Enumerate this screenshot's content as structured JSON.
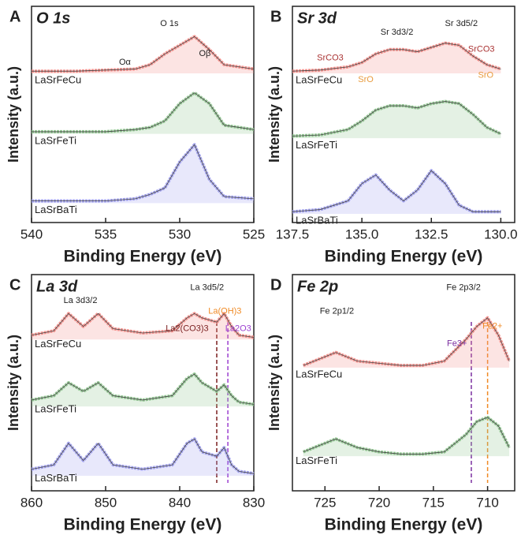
{
  "chart_data": [
    {
      "type": "line",
      "label": "A",
      "title": "O 1s",
      "xlabel": "Binding Energy (eV)",
      "ylabel": "Intensity (a.u.)",
      "xlim": [
        540,
        525
      ],
      "xticks": [
        540,
        535,
        530,
        525
      ],
      "ylim": [
        0,
        100
      ],
      "x": [
        540,
        537,
        535,
        533,
        532,
        531,
        530,
        529,
        528,
        527,
        525
      ],
      "series": [
        {
          "name": "LaSrFeCu",
          "color": "#f4938f",
          "values": [
            70,
            70,
            70.5,
            71,
            73,
            78,
            82,
            86,
            80,
            73,
            71
          ]
        },
        {
          "name": "LaSrFeTi",
          "color": "#94c794",
          "values": [
            42,
            42,
            42,
            43,
            44,
            47,
            55,
            60,
            55,
            45,
            43
          ]
        },
        {
          "name": "LaSrBaTi",
          "color": "#a3a3ee",
          "values": [
            10,
            10,
            10,
            11,
            13,
            16,
            28,
            36,
            20,
            12,
            11
          ]
        }
      ],
      "annotations": [
        "O 1s",
        "Oα",
        "Oβ"
      ]
    },
    {
      "type": "line",
      "label": "B",
      "title": "Sr 3d",
      "xlabel": "Binding Energy (eV)",
      "ylabel": "Intensity (a.u.)",
      "xlim": [
        137.5,
        129.5
      ],
      "xticks": [
        {
          "value": 137.5,
          "label": "137.5"
        },
        {
          "value": 135,
          "label": "135.0"
        },
        {
          "value": 132.5,
          "label": "132.5"
        },
        {
          "value": 130,
          "label": "130.0"
        }
      ],
      "ylim": [
        0,
        100
      ],
      "x": [
        137.5,
        136.5,
        135.5,
        135,
        134.5,
        134,
        133.5,
        133,
        132.5,
        132,
        131.5,
        131,
        130.5,
        130
      ],
      "series": [
        {
          "name": "LaSrFeCu",
          "color": "#f4938f",
          "values": [
            70,
            70.5,
            72,
            74,
            78,
            80,
            80,
            79,
            81,
            83,
            82,
            77,
            73,
            71
          ]
        },
        {
          "name": "LaSrFeTi",
          "color": "#94c794",
          "values": [
            40,
            40.5,
            43,
            47,
            52,
            54,
            54,
            53,
            55,
            56,
            55,
            50,
            44,
            41
          ]
        },
        {
          "name": "LaSrBaTi",
          "color": "#a3a3ee",
          "values": [
            5,
            6,
            10,
            18,
            22,
            15,
            10,
            15,
            24,
            18,
            8,
            5,
            5,
            5
          ]
        }
      ],
      "annotations": [
        "Sr 3d3/2",
        "Sr 3d5/2",
        "SrCO3",
        "SrO",
        "SrCO3",
        "SrO"
      ]
    },
    {
      "type": "line",
      "label": "C",
      "title": "La 3d",
      "xlabel": "Binding Energy (eV)",
      "ylabel": "Intensity (a.u.)",
      "xlim": [
        860,
        830
      ],
      "xticks": [
        860,
        850,
        840,
        830
      ],
      "ylim": [
        0,
        100
      ],
      "x": [
        860,
        857,
        855,
        853,
        851,
        849,
        845,
        841,
        839,
        838,
        837,
        835,
        834,
        833,
        832,
        830
      ],
      "series": [
        {
          "name": "LaSrFeCu",
          "color": "#f4938f",
          "values": [
            72,
            74,
            82,
            76,
            82,
            75,
            73,
            74,
            80,
            82,
            80,
            78,
            82,
            76,
            72,
            71
          ]
        },
        {
          "name": "LaSrFeTi",
          "color": "#94c794",
          "values": [
            42,
            44,
            50,
            46,
            50,
            44,
            42,
            44,
            52,
            54,
            50,
            46,
            49,
            44,
            41,
            40
          ]
        },
        {
          "name": "LaSrBaTi",
          "color": "#a3a3ee",
          "values": [
            10,
            12,
            22,
            14,
            22,
            12,
            10,
            12,
            22,
            24,
            18,
            16,
            20,
            12,
            9,
            8
          ]
        }
      ],
      "ref_lines": [
        {
          "x": 835,
          "color": "#7a1f1f"
        },
        {
          "x": 833.5,
          "color": "#9b3fd0"
        }
      ],
      "annotations": [
        "La 3d3/2",
        "La 3d5/2",
        "La(OH)3",
        "La2(CO3)3",
        "La2O3"
      ]
    },
    {
      "type": "line",
      "label": "D",
      "title": "Fe 2p",
      "xlabel": "Binding Energy (eV)",
      "ylabel": "Intensity (a.u.)",
      "xlim": [
        728,
        707.5
      ],
      "xticks": [
        725,
        720,
        715,
        710
      ],
      "ylim": [
        0,
        100
      ],
      "x": [
        727,
        725,
        724,
        722,
        720,
        718,
        716,
        714,
        712,
        711,
        710,
        709,
        708
      ],
      "series": [
        {
          "name": "LaSrFeCu",
          "color": "#f4938f",
          "values": [
            58,
            62,
            64,
            60,
            59,
            58,
            58,
            60,
            70,
            76,
            80,
            72,
            60
          ]
        },
        {
          "name": "LaSrFeTi",
          "color": "#94c794",
          "values": [
            18,
            22,
            24,
            20,
            18,
            17,
            17,
            18,
            26,
            32,
            34,
            30,
            20
          ]
        }
      ],
      "ref_lines": [
        {
          "x": 711.5,
          "color": "#7b2fa0"
        },
        {
          "x": 710,
          "color": "#f08a24"
        }
      ],
      "annotations": [
        "Fe 2p1/2",
        "Fe 2p3/2",
        "Fe3+",
        "Fe2+"
      ]
    }
  ]
}
